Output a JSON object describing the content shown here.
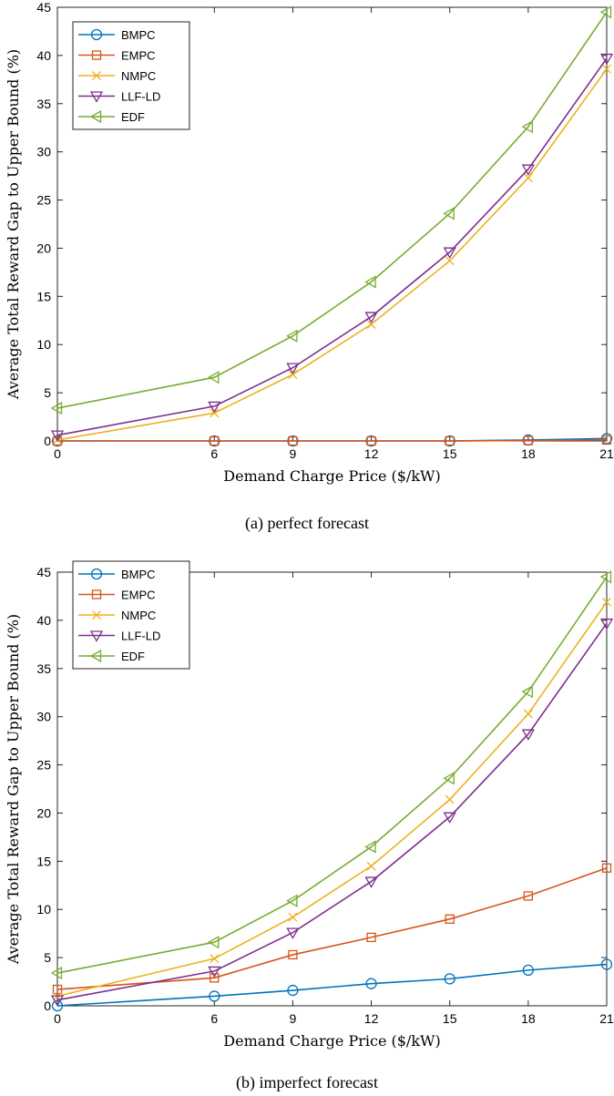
{
  "chart_data": [
    {
      "type": "line",
      "caption": "(a) perfect forecast",
      "xlabel": "Demand Charge Price ($/kW)",
      "ylabel": "Average Total Reward Gap to Upper Bound (%)",
      "x": [
        0,
        6,
        9,
        12,
        15,
        18,
        21
      ],
      "xticks": [
        "0",
        "6",
        "9",
        "12",
        "15",
        "18",
        "21"
      ],
      "xlim": [
        0,
        21
      ],
      "yticks": [
        "0",
        "5",
        "10",
        "15",
        "20",
        "25",
        "30",
        "35",
        "40",
        "45"
      ],
      "ylim": [
        0,
        45
      ],
      "grid": false,
      "legend": "top-left",
      "series": [
        {
          "name": "BMPC",
          "marker": "circle",
          "color": "#0072BD",
          "values": [
            0,
            0,
            0,
            0,
            0,
            0.1,
            0.25
          ]
        },
        {
          "name": "EMPC",
          "marker": "square",
          "color": "#D95319",
          "values": [
            0,
            0,
            0,
            0,
            0,
            0.05,
            0.1
          ]
        },
        {
          "name": "NMPC",
          "marker": "x",
          "color": "#EDB120",
          "values": [
            0.1,
            2.9,
            6.9,
            12.1,
            18.7,
            27.3,
            38.6
          ]
        },
        {
          "name": "LLF-LD",
          "marker": "triangle-down",
          "color": "#7E2F8E",
          "values": [
            0.6,
            3.6,
            7.6,
            12.9,
            19.6,
            28.2,
            39.7
          ]
        },
        {
          "name": "EDF",
          "marker": "triangle-left",
          "color": "#77AC30",
          "values": [
            3.4,
            6.6,
            10.9,
            16.5,
            23.6,
            32.6,
            44.5
          ]
        }
      ]
    },
    {
      "type": "line",
      "caption": "(b) imperfect forecast",
      "xlabel": "Demand Charge Price ($/kW)",
      "ylabel": "Average Total Reward Gap to Upper Bound (%)",
      "x": [
        0,
        6,
        9,
        12,
        15,
        18,
        21
      ],
      "xticks": [
        "0",
        "6",
        "9",
        "12",
        "15",
        "18",
        "21"
      ],
      "xlim": [
        0,
        21
      ],
      "yticks": [
        "0",
        "5",
        "10",
        "15",
        "20",
        "25",
        "30",
        "35",
        "40",
        "45"
      ],
      "ylim": [
        0,
        45
      ],
      "grid": false,
      "legend": "top-left",
      "series": [
        {
          "name": "BMPC",
          "marker": "circle",
          "color": "#0072BD",
          "values": [
            0,
            1.0,
            1.6,
            2.3,
            2.8,
            3.7,
            4.3
          ]
        },
        {
          "name": "EMPC",
          "marker": "square",
          "color": "#D95319",
          "values": [
            1.7,
            2.9,
            5.3,
            7.1,
            9.0,
            11.4,
            14.3
          ]
        },
        {
          "name": "NMPC",
          "marker": "x",
          "color": "#EDB120",
          "values": [
            1.0,
            4.9,
            9.2,
            14.5,
            21.4,
            30.3,
            41.9
          ]
        },
        {
          "name": "LLF-LD",
          "marker": "triangle-down",
          "color": "#7E2F8E",
          "values": [
            0.6,
            3.6,
            7.6,
            12.9,
            19.6,
            28.2,
            39.7
          ]
        },
        {
          "name": "EDF",
          "marker": "triangle-left",
          "color": "#77AC30",
          "values": [
            3.4,
            6.6,
            10.9,
            16.5,
            23.6,
            32.6,
            44.5
          ]
        }
      ]
    }
  ]
}
